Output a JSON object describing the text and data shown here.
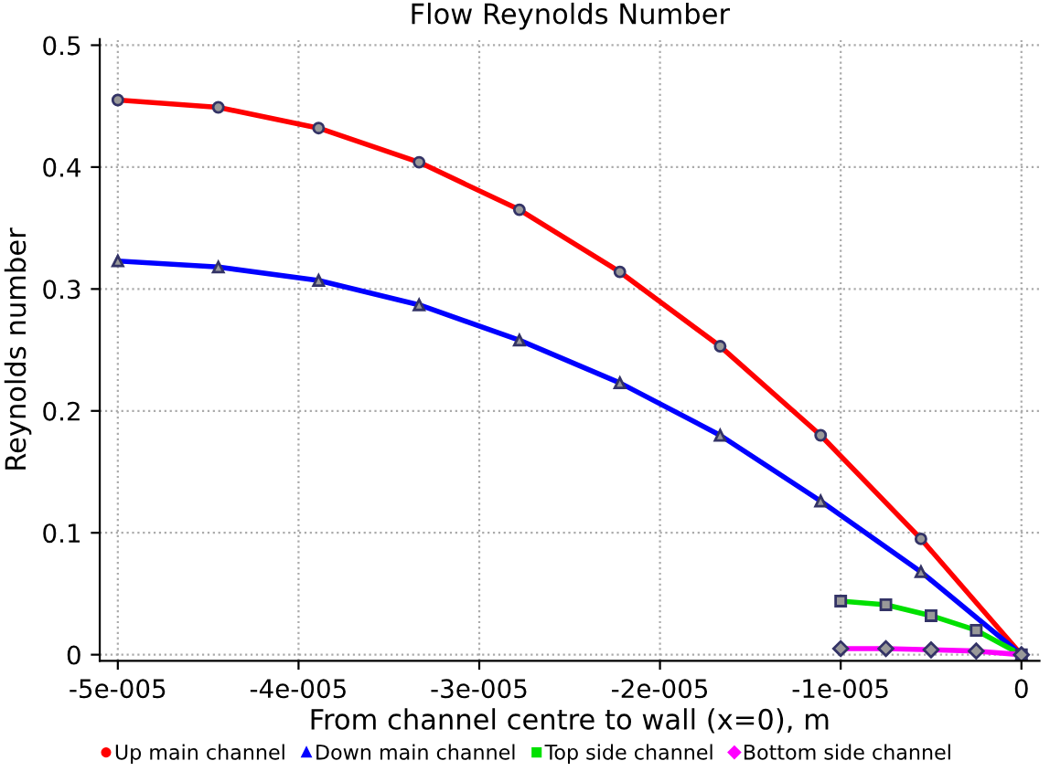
{
  "chart_data": {
    "type": "line",
    "title": "Flow Reynolds Number",
    "xlabel": "From channel centre to wall (x=0), m",
    "ylabel": "Reynolds number",
    "xlim": [
      -5.1e-05,
      1e-06
    ],
    "ylim": [
      -0.005,
      0.505
    ],
    "xticks": [
      {
        "value": -5e-05,
        "label": "-5e-005"
      },
      {
        "value": -4e-05,
        "label": "-4e-005"
      },
      {
        "value": -3e-05,
        "label": "-3e-005"
      },
      {
        "value": -2e-05,
        "label": "-2e-005"
      },
      {
        "value": -1e-05,
        "label": "-1e-005"
      },
      0
    ],
    "yticks": [
      0,
      0.1,
      0.2,
      0.3,
      0.4,
      0.5
    ],
    "grid": true,
    "legend": "bottom",
    "line_style": "solid",
    "series": [
      {
        "name": "Up main channel",
        "color": "#ff0000",
        "marker": "circle",
        "x": [
          -5e-05,
          -4.444e-05,
          -3.889e-05,
          -3.333e-05,
          -2.778e-05,
          -2.222e-05,
          -1.667e-05,
          -1.111e-05,
          -5.56e-06,
          0
        ],
        "values": [
          0.455,
          0.449,
          0.432,
          0.404,
          0.365,
          0.314,
          0.253,
          0.18,
          0.095,
          0
        ]
      },
      {
        "name": "Down main channel",
        "color": "#0000ff",
        "marker": "triangle",
        "x": [
          -5e-05,
          -4.444e-05,
          -3.889e-05,
          -3.333e-05,
          -2.778e-05,
          -2.222e-05,
          -1.667e-05,
          -1.111e-05,
          -5.56e-06,
          0
        ],
        "values": [
          0.323,
          0.318,
          0.307,
          0.287,
          0.258,
          0.223,
          0.18,
          0.126,
          0.068,
          0
        ]
      },
      {
        "name": "Top side channel",
        "color": "#00e000",
        "marker": "square",
        "x": [
          -1e-05,
          -7.5e-06,
          -5e-06,
          -2.5e-06,
          0
        ],
        "values": [
          0.044,
          0.041,
          0.032,
          0.02,
          0
        ]
      },
      {
        "name": "Bottom side channel",
        "color": "#ff00ff",
        "marker": "diamond",
        "x": [
          -1e-05,
          -7.5e-06,
          -5e-06,
          -2.5e-06,
          0
        ],
        "values": [
          0.005,
          0.005,
          0.004,
          0.003,
          0
        ]
      }
    ]
  }
}
